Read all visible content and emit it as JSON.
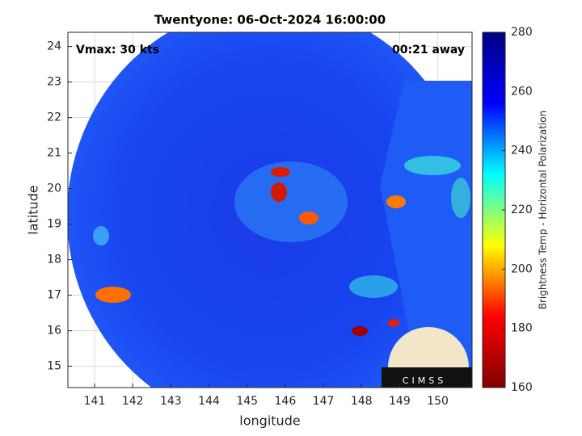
{
  "chart_data": {
    "type": "heatmap",
    "title": "Twentyone: 06-Oct-2024 16:00:00",
    "annotations": [
      "Vmax: 30 kts",
      "00:21 away"
    ],
    "xlabel": "longitude",
    "ylabel": "latitude",
    "xlim": [
      140.3,
      150.9
    ],
    "xticks": [
      141,
      142,
      143,
      144,
      145,
      146,
      147,
      148,
      149,
      150
    ],
    "ylim": [
      14.4,
      24.4
    ],
    "yticks": [
      15,
      16,
      17,
      18,
      19,
      20,
      21,
      22,
      23,
      24
    ],
    "grid": true,
    "colorbar": {
      "label": "Brightness Temp - Horizontal Polarization",
      "lim": [
        160,
        280
      ],
      "ticks": [
        160,
        180,
        200,
        220,
        240,
        260,
        280
      ],
      "colormap": [
        "#800000",
        "#ff0000",
        "#ffff00",
        "#00ffff",
        "#0000ff",
        "#000080"
      ]
    },
    "logo": "CIMSS"
  }
}
